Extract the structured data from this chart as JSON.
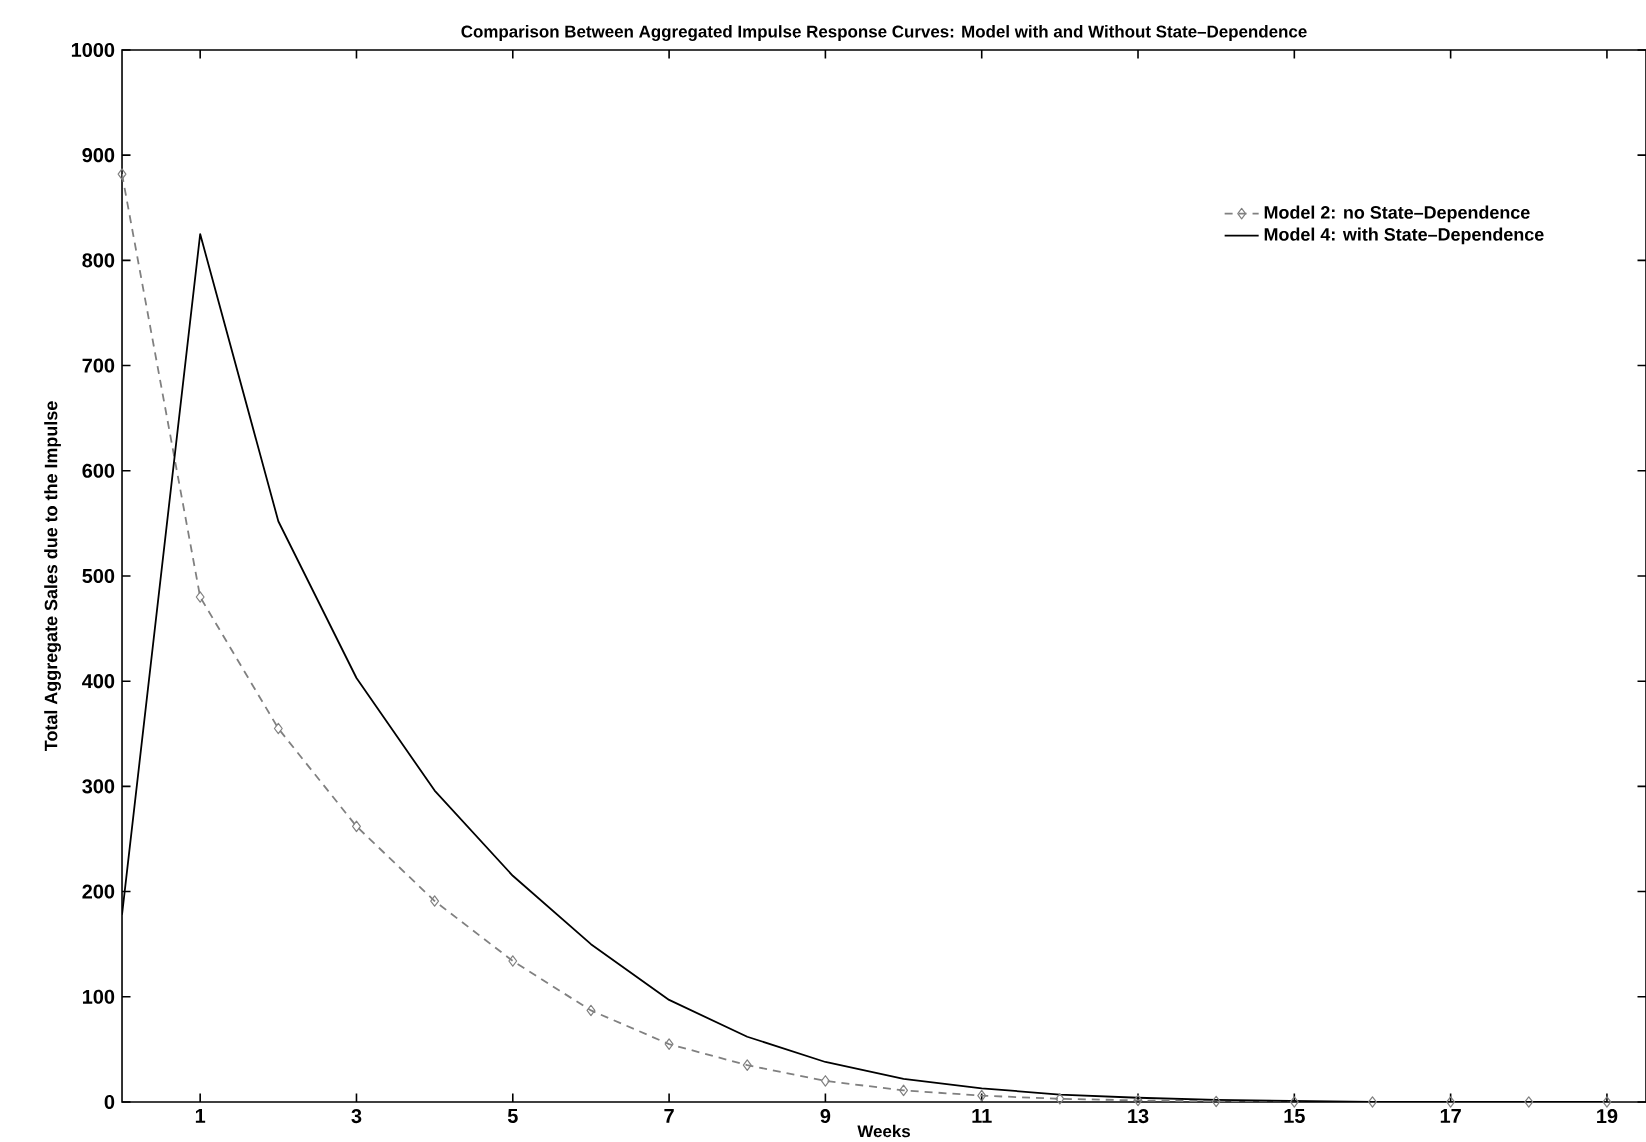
{
  "chart_data": {
    "type": "line",
    "title": "Comparison Between Aggregated Impulse Response Curves: Model with and Without State–Dependence",
    "xlabel": "Weeks",
    "ylabel": "Total Aggregate Sales due to the Impulse",
    "x": [
      0,
      1,
      2,
      3,
      4,
      5,
      6,
      7,
      8,
      9,
      10,
      11,
      12,
      13,
      14,
      15,
      16,
      17,
      18,
      19
    ],
    "series": [
      {
        "name": "Model 2: no State–Dependence",
        "color": "#808080",
        "line_style": "dashed",
        "marker": "diamond",
        "values": [
          882,
          480,
          355,
          262,
          191,
          134,
          87,
          55,
          35,
          20,
          11,
          6,
          3,
          1.5,
          0.5,
          0,
          0,
          0,
          0,
          0
        ]
      },
      {
        "name": "Model 4:  with State–Dependence",
        "color": "#000000",
        "line_style": "solid",
        "marker": "none",
        "values": [
          178,
          825,
          552,
          403,
          296,
          215,
          150,
          97,
          62,
          38,
          22,
          13,
          7,
          4,
          2,
          1,
          0,
          0,
          0,
          0
        ]
      }
    ],
    "xlim": [
      0,
      19.5
    ],
    "ylim": [
      0,
      1000
    ],
    "xticks": [
      1,
      3,
      5,
      7,
      9,
      11,
      13,
      15,
      17,
      19
    ],
    "yticks": [
      0,
      100,
      200,
      300,
      400,
      500,
      600,
      700,
      800,
      900,
      1000
    ],
    "grid": false,
    "legend": "top right"
  }
}
